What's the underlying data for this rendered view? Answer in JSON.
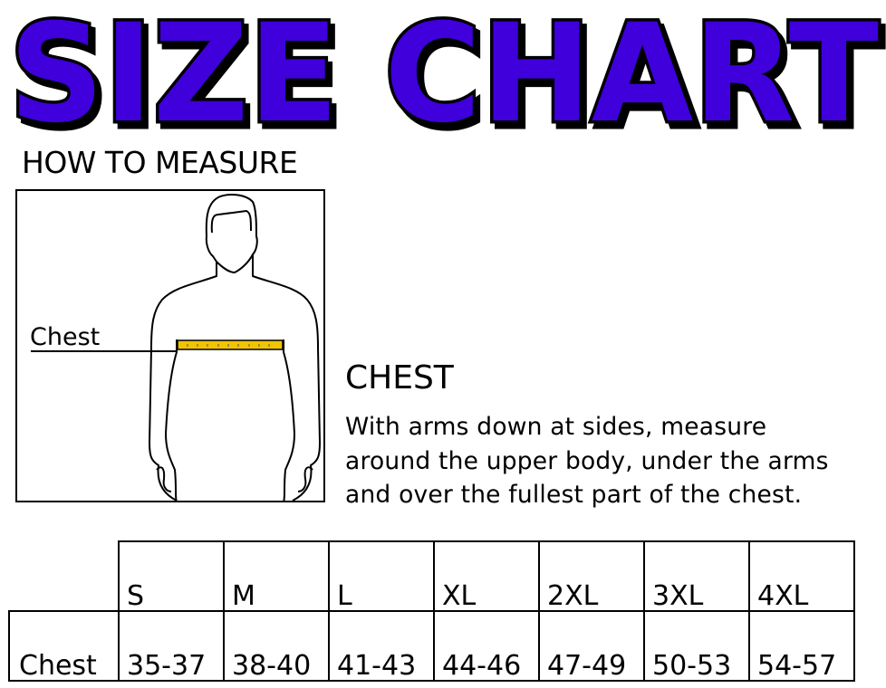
{
  "title": "SIZE CHART",
  "colors": {
    "title_fill": "#3f00dc",
    "title_outline": "#000000",
    "tape": "#f2c400"
  },
  "how_to_measure": {
    "heading": "HOW TO MEASURE",
    "figure_label": "Chest"
  },
  "chest": {
    "heading": "CHEST",
    "lines": [
      "With arms down at sides, measure",
      "around the upper body, under the arms",
      "and over the fullest part of the chest."
    ]
  },
  "table": {
    "sizes": [
      "S",
      "M",
      "L",
      "XL",
      "2XL",
      "3XL",
      "4XL"
    ],
    "rows": [
      {
        "label": "Chest",
        "values": [
          "35-37",
          "38-40",
          "41-43",
          "44-46",
          "47-49",
          "50-53",
          "54-57"
        ]
      }
    ]
  }
}
